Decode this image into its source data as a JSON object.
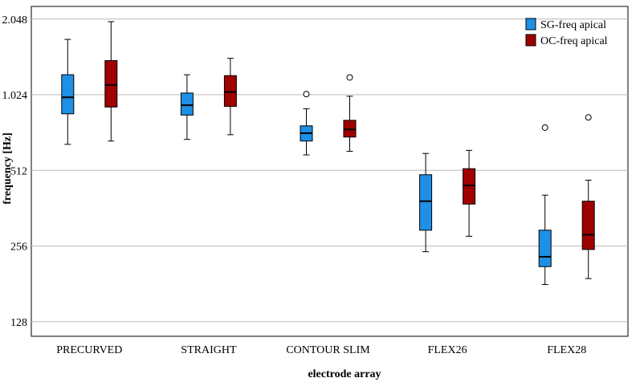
{
  "chart_data": {
    "type": "box",
    "title": "",
    "xlabel": "electrode array",
    "ylabel": "frequency [Hz]",
    "y_scale": "log2",
    "ylim": [
      112,
      2300
    ],
    "y_ticks": [
      128,
      256,
      512,
      1024,
      2048
    ],
    "y_tick_labels": [
      "128",
      "256",
      "512",
      "1.024",
      "2.048"
    ],
    "grid": "horizontal",
    "legend_position": "top-right",
    "categories": [
      "PRECURVED",
      "STRAIGHT",
      "CONTOUR SLIM",
      "FLEX26",
      "FLEX28"
    ],
    "series": [
      {
        "name": "SG-freq apical",
        "color": "#1e90e6",
        "boxes": [
          {
            "whisker_low": 650,
            "q1": 860,
            "median": 1000,
            "q3": 1230,
            "whisker_high": 1700,
            "outliers": []
          },
          {
            "whisker_low": 680,
            "q1": 850,
            "median": 930,
            "q3": 1040,
            "whisker_high": 1230,
            "outliers": []
          },
          {
            "whisker_low": 590,
            "q1": 670,
            "median": 720,
            "q3": 770,
            "whisker_high": 900,
            "outliers": [
              1030
            ]
          },
          {
            "whisker_low": 243,
            "q1": 296,
            "median": 386,
            "q3": 492,
            "whisker_high": 598,
            "outliers": []
          },
          {
            "whisker_low": 180,
            "q1": 212,
            "median": 232,
            "q3": 296,
            "whisker_high": 408,
            "outliers": [
              758
            ]
          }
        ]
      },
      {
        "name": "OC-freq apical",
        "color": "#a00000",
        "boxes": [
          {
            "whisker_low": 670,
            "q1": 915,
            "median": 1120,
            "q3": 1400,
            "whisker_high": 2000,
            "outliers": []
          },
          {
            "whisker_low": 710,
            "q1": 920,
            "median": 1050,
            "q3": 1220,
            "whisker_high": 1430,
            "outliers": []
          },
          {
            "whisker_low": 610,
            "q1": 695,
            "median": 745,
            "q3": 810,
            "whisker_high": 1010,
            "outliers": [
              1200
            ]
          },
          {
            "whisker_low": 280,
            "q1": 376,
            "median": 446,
            "q3": 520,
            "whisker_high": 615,
            "outliers": []
          },
          {
            "whisker_low": 190,
            "q1": 248,
            "median": 284,
            "q3": 386,
            "whisker_high": 468,
            "outliers": [
              832
            ]
          }
        ]
      }
    ]
  }
}
